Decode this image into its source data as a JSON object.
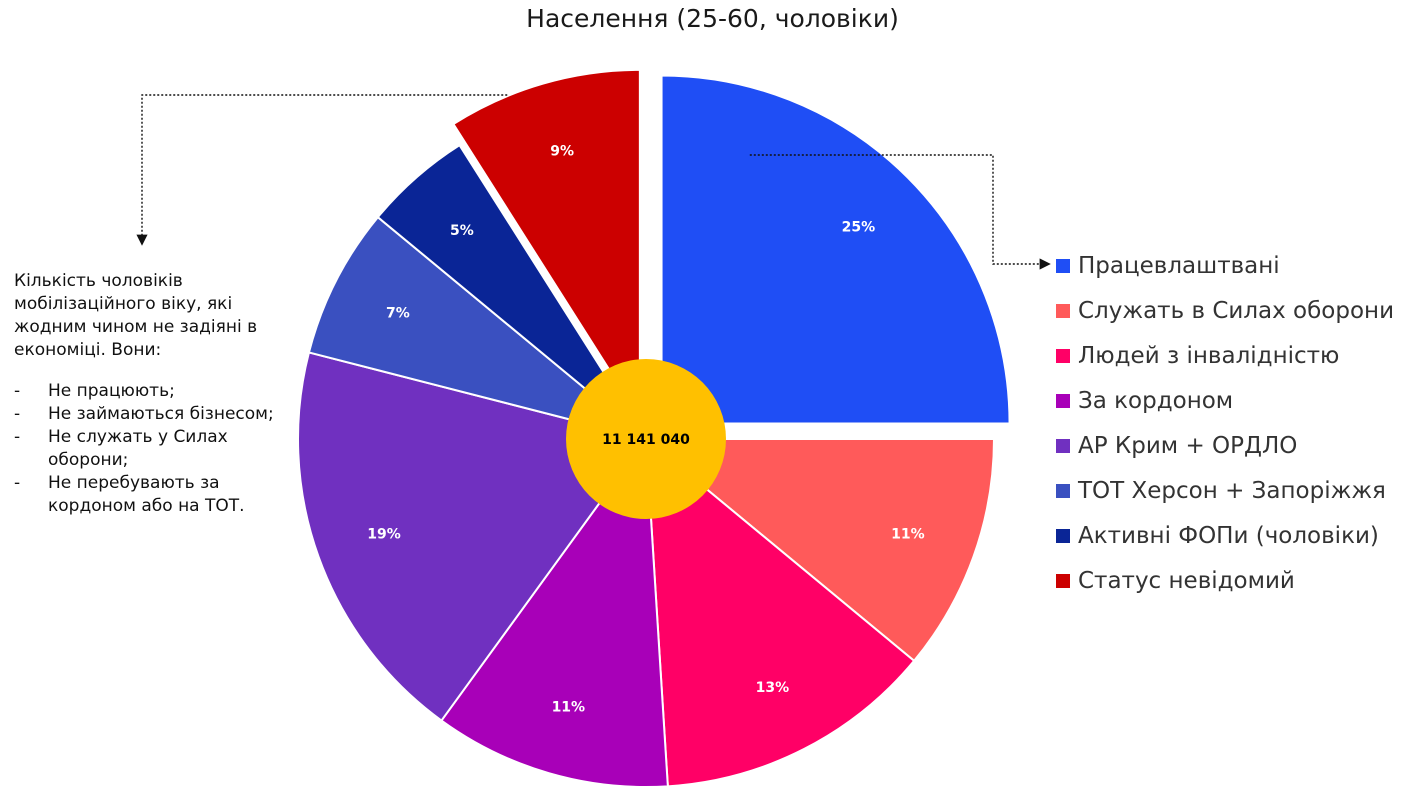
{
  "chart_data": {
    "type": "pie",
    "title": "Населення (25-60, чоловіки)",
    "total_label": "11 141 040",
    "exploded": [
      "Працевлаштвані",
      "Статус невідомий"
    ],
    "legend_position": "right",
    "slices": [
      {
        "label": "Працевлаштвані",
        "value": 25,
        "value_label": "25%",
        "color": "#1f4ef5"
      },
      {
        "label": "Служать в Силах оборони",
        "value": 11,
        "value_label": "11%",
        "color": "#ff5a5a"
      },
      {
        "label": "Людей з інвалідністю",
        "value": 13,
        "value_label": "13%",
        "color": "#ff0066"
      },
      {
        "label": "За кордоном",
        "value": 11,
        "value_label": "11%",
        "color": "#a800b8"
      },
      {
        "label": "АР Крим + ОРДЛО",
        "value": 19,
        "value_label": "19%",
        "color": "#7030c0"
      },
      {
        "label": "ТОТ Херсон + Запоріжжя",
        "value": 7,
        "value_label": "7%",
        "color": "#3a50c0"
      },
      {
        "label": "Активні ФОПи (чоловіки)",
        "value": 5,
        "value_label": "5%",
        "color": "#0a2596"
      },
      {
        "label": "Статус невідомий",
        "value": 9,
        "value_label": "9%",
        "color": "#cc0000"
      }
    ],
    "center_color": "#ffc000"
  },
  "note": {
    "intro": "Кількість чоловіків мобілізаційного віку, які жодним чином не задіяні в економіці. Вони:",
    "bullet": "-",
    "items": [
      "Не працюють;",
      "Не займаються бізнесом;",
      "Не служать у Силах оборони;",
      "Не перебувають за кордоном або на ТОТ."
    ]
  }
}
